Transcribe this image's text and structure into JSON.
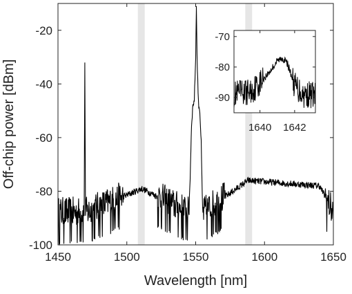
{
  "chart_data": [
    {
      "type": "line",
      "xlabel": "Wavelength [nm]",
      "ylabel": "Off-chip power [dBm]",
      "xlim": [
        1450,
        1650
      ],
      "ylim": [
        -100,
        -10
      ],
      "xticks": [
        1450,
        1500,
        1550,
        1600,
        1650
      ],
      "yticks": [
        -100,
        -80,
        -60,
        -40,
        -20
      ],
      "grid": false,
      "series": [
        {
          "color": "#000000",
          "noise_floor_dbm": -88,
          "x": [
            1450,
            1469,
            1469.5,
            1470,
            1511,
            1545,
            1546,
            1547,
            1548,
            1549,
            1550,
            1550.5,
            1551,
            1552,
            1553,
            1554,
            1555,
            1588,
            1640,
            1650
          ],
          "y": [
            -88,
            -88,
            -33,
            -88,
            -79,
            -88,
            -75,
            -55,
            -48,
            -46,
            -30,
            -11,
            -30,
            -47,
            -50,
            -62,
            -88,
            -76,
            -78,
            -88
          ]
        }
      ],
      "shaded_bands_nm": [
        [
          1508,
          1513
        ],
        [
          1586,
          1591
        ]
      ],
      "shade_color": "#e6e6e6"
    },
    {
      "type": "line",
      "role": "inset",
      "xlim": [
        1638.5,
        1643.2
      ],
      "ylim": [
        -95,
        -68
      ],
      "xticks": [
        1640,
        1642
      ],
      "yticks": [
        -90,
        -80,
        -70
      ],
      "grid": false,
      "series": [
        {
          "color": "#000000",
          "x": [
            1638.5,
            1639.5,
            1640.5,
            1641.0,
            1641.3,
            1641.6,
            1642.0,
            1642.5,
            1643.2
          ],
          "y": [
            -89,
            -88,
            -82,
            -78,
            -77,
            -79,
            -86,
            -89,
            -89
          ]
        }
      ]
    }
  ]
}
